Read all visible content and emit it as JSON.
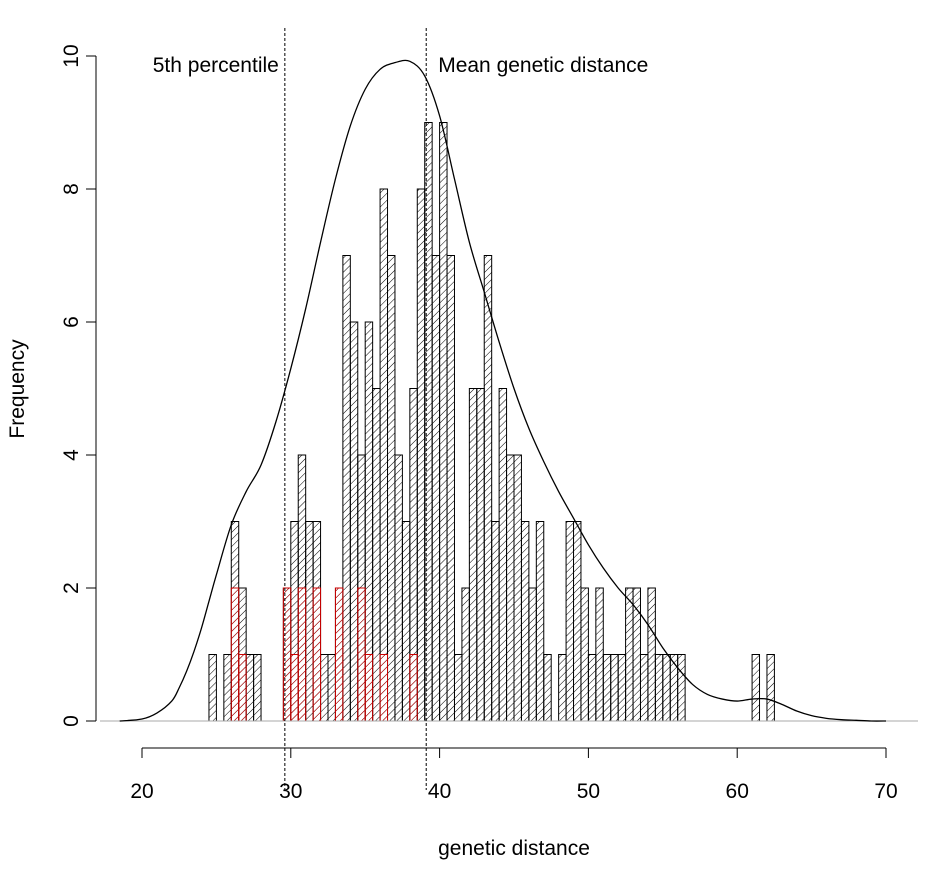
{
  "chart_data": {
    "type": "bar",
    "subtype": "histogram with density curve",
    "xlabel": "genetic distance",
    "ylabel": "Frequency",
    "xlim": [
      20,
      70
    ],
    "ylim": [
      0,
      10
    ],
    "xticks": [
      "20",
      "30",
      "40",
      "50",
      "60",
      "70"
    ],
    "yticks": [
      "0",
      "2",
      "4",
      "6",
      "8",
      "10"
    ],
    "bin_width": 0.5,
    "series": [
      {
        "color": "#000000",
        "hatch": "diagonal",
        "bins": [
          [
            24.5,
            1
          ],
          [
            25.5,
            1
          ],
          [
            26.0,
            3
          ],
          [
            26.5,
            2
          ],
          [
            27.0,
            1
          ],
          [
            27.5,
            1
          ],
          [
            29.5,
            2
          ],
          [
            30.0,
            3
          ],
          [
            30.5,
            4
          ],
          [
            31.0,
            3
          ],
          [
            31.5,
            3
          ],
          [
            32.0,
            1
          ],
          [
            32.5,
            1
          ],
          [
            33.0,
            2
          ],
          [
            33.5,
            7
          ],
          [
            34.0,
            6
          ],
          [
            34.5,
            4
          ],
          [
            35.0,
            6
          ],
          [
            35.5,
            5
          ],
          [
            36.0,
            8
          ],
          [
            36.5,
            7
          ],
          [
            37.0,
            4
          ],
          [
            37.5,
            3
          ],
          [
            38.0,
            5
          ],
          [
            38.5,
            8
          ],
          [
            39.0,
            9
          ],
          [
            39.5,
            7
          ],
          [
            40.0,
            9
          ],
          [
            40.5,
            7
          ],
          [
            41.0,
            1
          ],
          [
            41.5,
            2
          ],
          [
            42.0,
            5
          ],
          [
            42.5,
            5
          ],
          [
            43.0,
            7
          ],
          [
            43.5,
            3
          ],
          [
            44.0,
            5
          ],
          [
            44.5,
            4
          ],
          [
            45.0,
            4
          ],
          [
            45.5,
            3
          ],
          [
            46.0,
            2
          ],
          [
            46.5,
            3
          ],
          [
            47.0,
            1
          ],
          [
            47.5,
            0
          ],
          [
            48.0,
            1
          ],
          [
            48.5,
            3
          ],
          [
            49.0,
            3
          ],
          [
            49.5,
            2
          ],
          [
            50.0,
            1
          ],
          [
            50.5,
            2
          ],
          [
            51.0,
            1
          ],
          [
            51.5,
            1
          ],
          [
            52.0,
            1
          ],
          [
            52.5,
            2
          ],
          [
            53.0,
            2
          ],
          [
            53.5,
            1
          ],
          [
            54.0,
            2
          ],
          [
            54.5,
            1
          ],
          [
            55.0,
            1
          ],
          [
            55.5,
            1
          ],
          [
            56.0,
            1
          ],
          [
            61.0,
            1
          ],
          [
            62.0,
            1
          ]
        ]
      },
      {
        "color": "#cc0000",
        "hatch": "diagonal",
        "bins": [
          [
            26.0,
            2
          ],
          [
            26.5,
            1
          ],
          [
            29.5,
            2
          ],
          [
            30.0,
            1
          ],
          [
            30.5,
            2
          ],
          [
            31.5,
            2
          ],
          [
            33.0,
            2
          ],
          [
            34.5,
            2
          ],
          [
            35.0,
            1
          ],
          [
            36.0,
            1
          ],
          [
            38.0,
            1
          ]
        ]
      }
    ],
    "density_curve": {
      "x": [
        18.5,
        20,
        21,
        22,
        22.5,
        23,
        23.5,
        24,
        24.5,
        25,
        26,
        27,
        28,
        29,
        30,
        31,
        32,
        33,
        34,
        35,
        36,
        37,
        38,
        39,
        40,
        41,
        42,
        43,
        44,
        45,
        46,
        47,
        48,
        49,
        50,
        51,
        52,
        53,
        54,
        55,
        56,
        57,
        58,
        59,
        60,
        61,
        62,
        63,
        64,
        65,
        66,
        67,
        68,
        69,
        70
      ],
      "y": [
        0,
        0.03,
        0.12,
        0.3,
        0.5,
        0.75,
        1.05,
        1.4,
        1.8,
        2.2,
        2.95,
        3.45,
        3.85,
        4.5,
        5.3,
        6.2,
        7.2,
        8.15,
        8.95,
        9.5,
        9.8,
        9.9,
        9.92,
        9.7,
        9.1,
        8.15,
        7.2,
        6.45,
        5.7,
        5.0,
        4.4,
        3.9,
        3.45,
        3.05,
        2.65,
        2.3,
        2.0,
        1.75,
        1.45,
        1.1,
        0.8,
        0.55,
        0.4,
        0.33,
        0.3,
        0.33,
        0.33,
        0.25,
        0.15,
        0.08,
        0.04,
        0.02,
        0.01,
        0.0,
        0.0
      ]
    },
    "reference_lines": [
      {
        "x": 29.6,
        "style": "dashed",
        "label": "5th percentile",
        "label_side": "left"
      },
      {
        "x": 39.1,
        "style": "dashed",
        "label": "Mean genetic distance",
        "label_side": "right"
      }
    ]
  }
}
